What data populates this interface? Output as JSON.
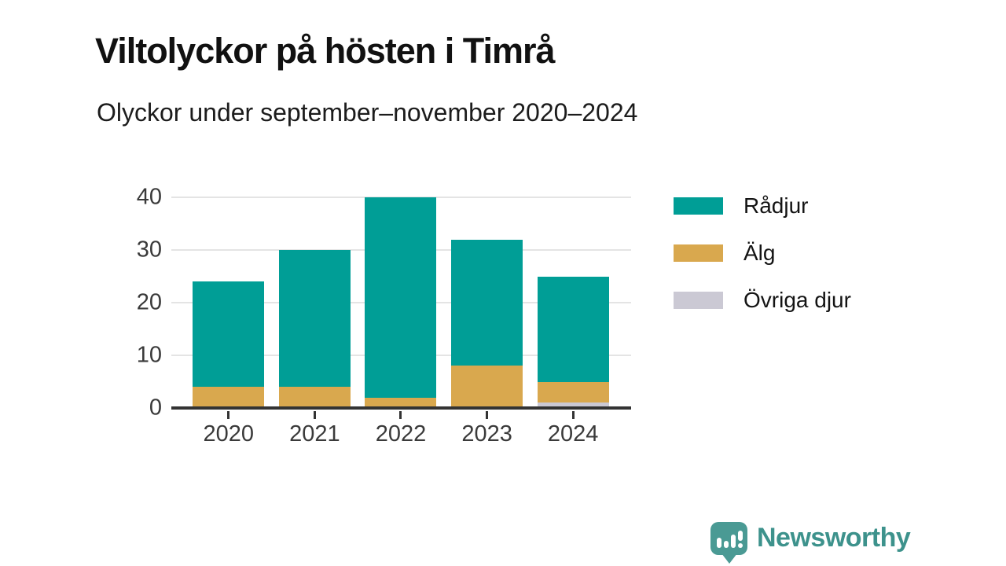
{
  "header": {
    "title": "Viltolyckor på hösten i Timrå",
    "subtitle": "Olyckor under september–november 2020–2024"
  },
  "chart_data": {
    "type": "bar",
    "stacked": true,
    "categories": [
      "2020",
      "2021",
      "2022",
      "2023",
      "2024"
    ],
    "series": [
      {
        "name": "Rådjur",
        "color": "#009E96",
        "values": [
          20,
          26,
          38,
          24,
          20
        ]
      },
      {
        "name": "Älg",
        "color": "#D9A84E",
        "values": [
          4,
          4,
          2,
          8,
          4
        ]
      },
      {
        "name": "Övriga djur",
        "color": "#CBC9D4",
        "values": [
          0,
          0,
          0,
          0,
          1
        ]
      }
    ],
    "totals": [
      24,
      30,
      40,
      32,
      25
    ],
    "stack_order_bottom_to_top": [
      "Övriga djur",
      "Älg",
      "Rådjur"
    ],
    "title": "Viltolyckor på hösten i Timrå",
    "xlabel": "",
    "ylabel": "",
    "ylim": [
      0,
      40
    ],
    "yticks": [
      0,
      10,
      20,
      30,
      40
    ],
    "grid": true,
    "legend_position": "right-top"
  },
  "legend": {
    "items": [
      {
        "label": "Rådjur",
        "color": "#009E96"
      },
      {
        "label": "Älg",
        "color": "#D9A84E"
      },
      {
        "label": "Övriga djur",
        "color": "#CBC9D4"
      }
    ]
  },
  "branding": {
    "wordmark": "Newsworthy",
    "logo_icon": "bar-chart-speech-bubble-icon",
    "logo_color": "#4A9A94",
    "wordmark_color": "#3D928C"
  },
  "colors": {
    "axis": "#333333",
    "grid": "#E4E4E4",
    "tick_label": "#3A3A3A",
    "text": "#141414"
  }
}
